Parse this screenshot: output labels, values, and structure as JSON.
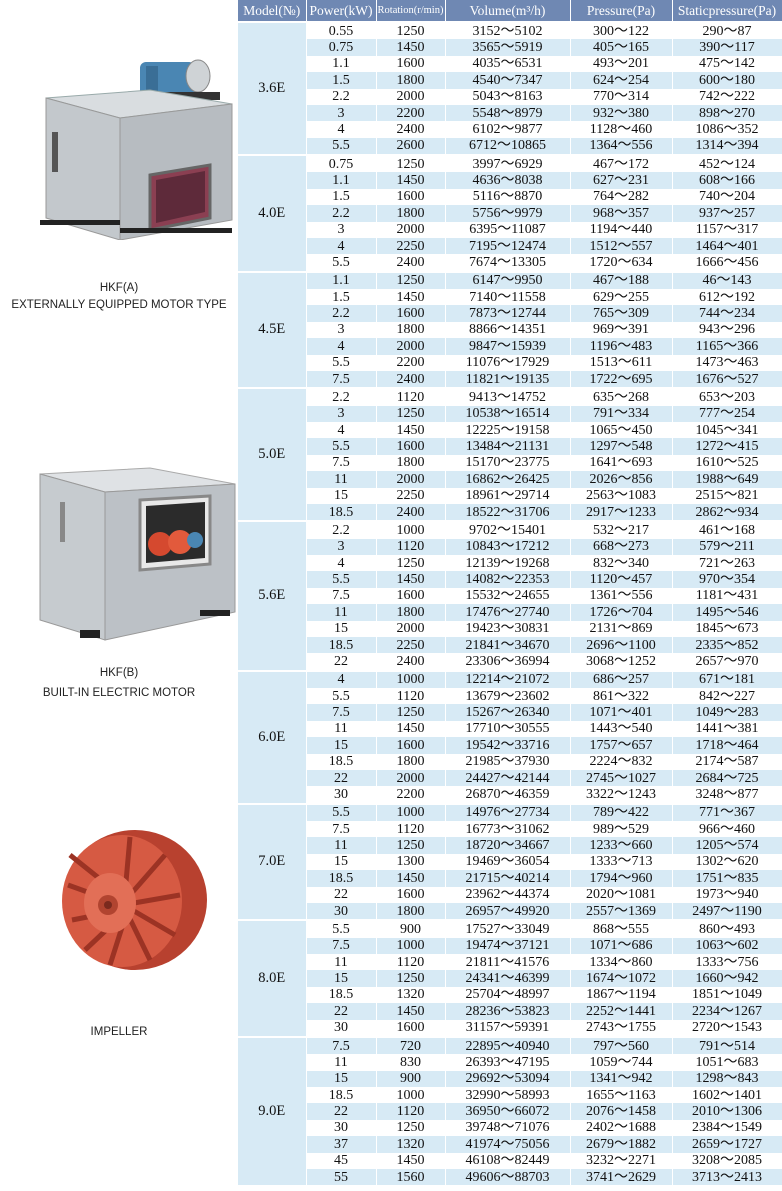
{
  "headers": {
    "model": "Model(№)",
    "power": "Power(kW)",
    "rotation": "Rotation(r/min)",
    "volume": "Volume(m³/h)",
    "pressure": "Pressure(Pa)",
    "static": "Staticpressure(Pa)"
  },
  "products": {
    "hkf_a": {
      "name": "HKF(A)",
      "desc": "EXTERNALLY EQUIPPED MOTOR TYPE"
    },
    "hkf_b": {
      "name": "HKF(B)",
      "desc": "BUILT-IN ELECTRIC MOTOR"
    },
    "impeller": {
      "name": "IMPELLER"
    }
  },
  "groups": [
    {
      "model": "3.6E",
      "rows": [
        [
          "0.55",
          "1250",
          "3152～5102",
          "300～122",
          "290～87"
        ],
        [
          "0.75",
          "1450",
          "3565～5919",
          "405～165",
          "390～117"
        ],
        [
          "1.1",
          "1600",
          "4035～6531",
          "493～201",
          "475～142"
        ],
        [
          "1.5",
          "1800",
          "4540～7347",
          "624～254",
          "600～180"
        ],
        [
          "2.2",
          "2000",
          "5043～8163",
          "770～314",
          "742～222"
        ],
        [
          "3",
          "2200",
          "5548～8979",
          "932～380",
          "898～270"
        ],
        [
          "4",
          "2400",
          "6102～9877",
          "1128～460",
          "1086～352"
        ],
        [
          "5.5",
          "2600",
          "6712～10865",
          "1364～556",
          "1314～394"
        ]
      ]
    },
    {
      "model": "4.0E",
      "rows": [
        [
          "0.75",
          "1250",
          "3997～6929",
          "467～172",
          "452～124"
        ],
        [
          "1.1",
          "1450",
          "4636～8038",
          "627～231",
          "608～166"
        ],
        [
          "1.5",
          "1600",
          "5116～8870",
          "764～282",
          "740～204"
        ],
        [
          "2.2",
          "1800",
          "5756～9979",
          "968～357",
          "937～257"
        ],
        [
          "3",
          "2000",
          "6395～11087",
          "1194～440",
          "1157～317"
        ],
        [
          "4",
          "2250",
          "7195～12474",
          "1512～557",
          "1464～401"
        ],
        [
          "5.5",
          "2400",
          "7674～13305",
          "1720～634",
          "1666～456"
        ]
      ]
    },
    {
      "model": "4.5E",
      "rows": [
        [
          "1.1",
          "1250",
          "6147～9950",
          "467～188",
          "46～143"
        ],
        [
          "1.5",
          "1450",
          "7140～11558",
          "629～255",
          "612～192"
        ],
        [
          "2.2",
          "1600",
          "7873～12744",
          "765～309",
          "744～234"
        ],
        [
          "3",
          "1800",
          "8866～14351",
          "969～391",
          "943～296"
        ],
        [
          "4",
          "2000",
          "9847～15939",
          "1196～483",
          "1165～366"
        ],
        [
          "5.5",
          "2200",
          "11076～17929",
          "1513～611",
          "1473～463"
        ],
        [
          "7.5",
          "2400",
          "11821～19135",
          "1722～695",
          "1676～527"
        ]
      ]
    },
    {
      "model": "5.0E",
      "rows": [
        [
          "2.2",
          "1120",
          "9413～14752",
          "635～268",
          "653～203"
        ],
        [
          "3",
          "1250",
          "10538～16514",
          "791～334",
          "777～254"
        ],
        [
          "4",
          "1450",
          "12225～19158",
          "1065～450",
          "1045～341"
        ],
        [
          "5.5",
          "1600",
          "13484～21131",
          "1297～548",
          "1272～415"
        ],
        [
          "7.5",
          "1800",
          "15170～23775",
          "1641～693",
          "1610～525"
        ],
        [
          "11",
          "2000",
          "16862～26425",
          "2026～856",
          "1988～649"
        ],
        [
          "15",
          "2250",
          "18961～29714",
          "2563～1083",
          "2515～821"
        ],
        [
          "18.5",
          "2400",
          "18522～31706",
          "2917～1233",
          "2862～934"
        ]
      ]
    },
    {
      "model": "5.6E",
      "rows": [
        [
          "2.2",
          "1000",
          "9702～15401",
          "532～217",
          "461～168"
        ],
        [
          "3",
          "1120",
          "10843～17212",
          "668～273",
          "579～211"
        ],
        [
          "4",
          "1250",
          "12139～19268",
          "832～340",
          "721～263"
        ],
        [
          "5.5",
          "1450",
          "14082～22353",
          "1120～457",
          "970～354"
        ],
        [
          "7.5",
          "1600",
          "15532～24655",
          "1361～556",
          "1181～431"
        ],
        [
          "11",
          "1800",
          "17476～27740",
          "1726～704",
          "1495～546"
        ],
        [
          "15",
          "2000",
          "19423～30831",
          "2131～869",
          "1845～673"
        ],
        [
          "18.5",
          "2250",
          "21841～34670",
          "2696～1100",
          "2335～852"
        ],
        [
          "22",
          "2400",
          "23306～36994",
          "3068～1252",
          "2657～970"
        ]
      ]
    },
    {
      "model": "6.0E",
      "rows": [
        [
          "4",
          "1000",
          "12214～21072",
          "686～257",
          "671～181"
        ],
        [
          "5.5",
          "1120",
          "13679～23602",
          "861～322",
          "842～227"
        ],
        [
          "7.5",
          "1250",
          "15267～26340",
          "1071～401",
          "1049～283"
        ],
        [
          "11",
          "1450",
          "17710～30555",
          "1443～540",
          "1441～381"
        ],
        [
          "15",
          "1600",
          "19542～33716",
          "1757～657",
          "1718～464"
        ],
        [
          "18.5",
          "1800",
          "21985～37930",
          "2224～832",
          "2174～587"
        ],
        [
          "22",
          "2000",
          "24427～42144",
          "2745～1027",
          "2684～725"
        ],
        [
          "30",
          "2200",
          "26870～46359",
          "3322～1243",
          "3248～877"
        ]
      ]
    },
    {
      "model": "7.0E",
      "rows": [
        [
          "5.5",
          "1000",
          "14976～27734",
          "789～422",
          "771～367"
        ],
        [
          "7.5",
          "1120",
          "16773～31062",
          "989～529",
          "966～460"
        ],
        [
          "11",
          "1250",
          "18720～34667",
          "1233～660",
          "1205～574"
        ],
        [
          "15",
          "1300",
          "19469～36054",
          "1333～713",
          "1302～620"
        ],
        [
          "18.5",
          "1450",
          "21715～40214",
          "1794～960",
          "1751～835"
        ],
        [
          "22",
          "1600",
          "23962～44374",
          "2020～1081",
          "1973～940"
        ],
        [
          "30",
          "1800",
          "26957～49920",
          "2557～1369",
          "2497～1190"
        ]
      ]
    },
    {
      "model": "8.0E",
      "rows": [
        [
          "5.5",
          "900",
          "17527～33049",
          "868～555",
          "860～493"
        ],
        [
          "7.5",
          "1000",
          "19474～37121",
          "1071～686",
          "1063～602"
        ],
        [
          "11",
          "1120",
          "21811～41576",
          "1334～860",
          "1333～756"
        ],
        [
          "15",
          "1250",
          "24341～46399",
          "1674～1072",
          "1660～942"
        ],
        [
          "18.5",
          "1320",
          "25704～48997",
          "1867～1194",
          "1851～1049"
        ],
        [
          "22",
          "1450",
          "28236～53823",
          "2252～1441",
          "2234～1267"
        ],
        [
          "30",
          "1600",
          "31157～59391",
          "2743～1755",
          "2720～1543"
        ]
      ]
    },
    {
      "model": "9.0E",
      "rows": [
        [
          "7.5",
          "720",
          "22895～40940",
          "797～560",
          "791～514"
        ],
        [
          "11",
          "830",
          "26393～47195",
          "1059～744",
          "1051～683"
        ],
        [
          "15",
          "900",
          "29692～53094",
          "1341～942",
          "1298～843"
        ],
        [
          "18.5",
          "1000",
          "32990～58993",
          "1655～1163",
          "1602～1401"
        ],
        [
          "22",
          "1120",
          "36950～66072",
          "2076～1458",
          "2010～1306"
        ],
        [
          "30",
          "1250",
          "39748～71076",
          "2402～1688",
          "2384～1549"
        ],
        [
          "37",
          "1320",
          "41974～75056",
          "2679～1882",
          "2659～1727"
        ],
        [
          "45",
          "1450",
          "46108～82449",
          "3232～2271",
          "3208～2085"
        ],
        [
          "55",
          "1560",
          "49606～88703",
          "3741～2629",
          "3713～2413"
        ]
      ]
    }
  ]
}
